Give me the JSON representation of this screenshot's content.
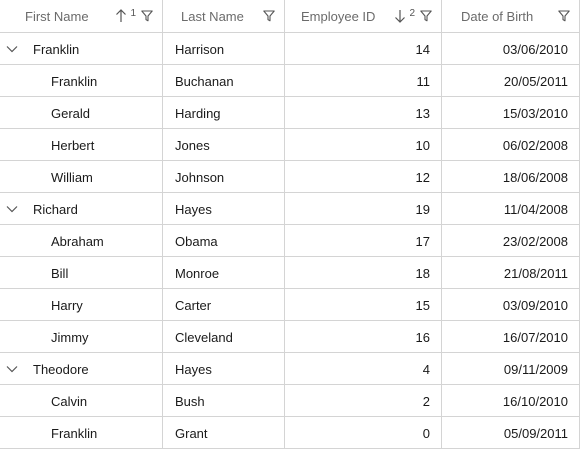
{
  "columns": {
    "first_name": {
      "label": "First Name",
      "sort_index": "1"
    },
    "last_name": {
      "label": "Last Name"
    },
    "employee_id": {
      "label": "Employee ID",
      "sort_index": "2"
    },
    "date_of_birth": {
      "label": "Date of Birth"
    }
  },
  "rows": [
    {
      "level": 0,
      "expanded": true,
      "first_name": "Franklin",
      "last_name": "Harrison",
      "employee_id": "14",
      "date_of_birth": "03/06/2010"
    },
    {
      "level": 1,
      "first_name": "Franklin",
      "last_name": "Buchanan",
      "employee_id": "11",
      "date_of_birth": "20/05/2011"
    },
    {
      "level": 1,
      "first_name": "Gerald",
      "last_name": "Harding",
      "employee_id": "13",
      "date_of_birth": "15/03/2010"
    },
    {
      "level": 1,
      "first_name": "Herbert",
      "last_name": "Jones",
      "employee_id": "10",
      "date_of_birth": "06/02/2008"
    },
    {
      "level": 1,
      "first_name": "William",
      "last_name": "Johnson",
      "employee_id": "12",
      "date_of_birth": "18/06/2008"
    },
    {
      "level": 0,
      "expanded": true,
      "first_name": "Richard",
      "last_name": "Hayes",
      "employee_id": "19",
      "date_of_birth": "11/04/2008"
    },
    {
      "level": 1,
      "first_name": "Abraham",
      "last_name": "Obama",
      "employee_id": "17",
      "date_of_birth": "23/02/2008"
    },
    {
      "level": 1,
      "first_name": "Bill",
      "last_name": "Monroe",
      "employee_id": "18",
      "date_of_birth": "21/08/2011"
    },
    {
      "level": 1,
      "first_name": "Harry",
      "last_name": "Carter",
      "employee_id": "15",
      "date_of_birth": "03/09/2010"
    },
    {
      "level": 1,
      "first_name": "Jimmy",
      "last_name": "Cleveland",
      "employee_id": "16",
      "date_of_birth": "16/07/2010"
    },
    {
      "level": 0,
      "expanded": true,
      "first_name": "Theodore",
      "last_name": "Hayes",
      "employee_id": "4",
      "date_of_birth": "09/11/2009"
    },
    {
      "level": 1,
      "first_name": "Calvin",
      "last_name": "Bush",
      "employee_id": "2",
      "date_of_birth": "16/10/2010"
    },
    {
      "level": 1,
      "first_name": "Franklin",
      "last_name": "Grant",
      "employee_id": "0",
      "date_of_birth": "05/09/2011"
    }
  ]
}
